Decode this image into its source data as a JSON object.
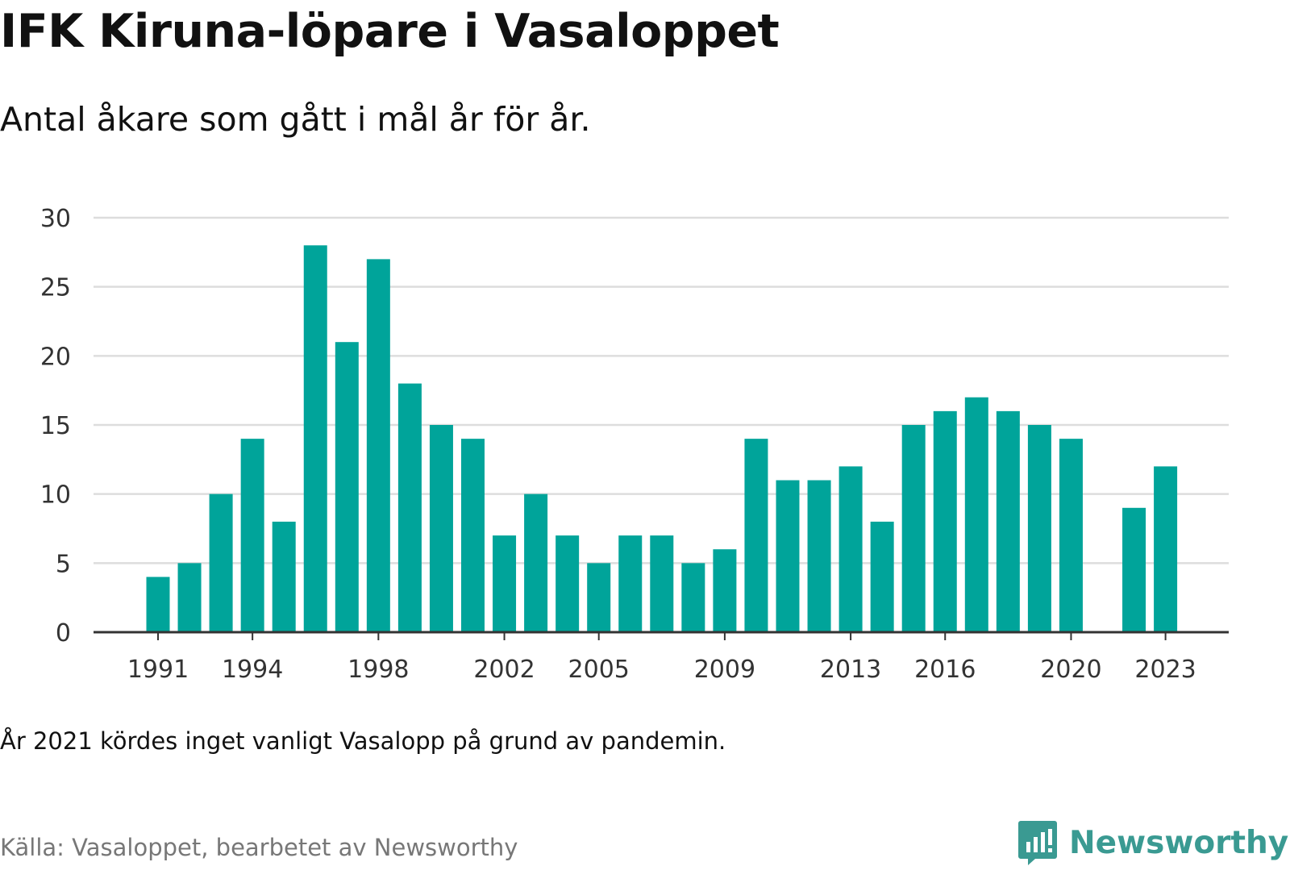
{
  "header": {
    "title": "IFK Kiruna-löpare i Vasaloppet",
    "subtitle": "Antal åkare som gått i mål år för år."
  },
  "footer": {
    "note": "År 2021 kördes inget vanligt Vasalopp på grund av pandemin.",
    "source": "Källa: Vasaloppet, bearbetet av Newsworthy",
    "brand_name": "Newsworthy",
    "brand_icon": "newsworthy-chart-logo-icon"
  },
  "colors": {
    "bar": "#00a49a",
    "grid": "#dddddd",
    "axis": "#333333",
    "brand": "#3a9a92"
  },
  "chart_data": {
    "type": "bar",
    "title": "IFK Kiruna-löpare i Vasaloppet",
    "subtitle": "Antal åkare som gått i mål år för år.",
    "xlabel": "",
    "ylabel": "",
    "ylim": [
      0,
      30
    ],
    "yticks": [
      0,
      5,
      10,
      15,
      20,
      25,
      30
    ],
    "xticks": [
      1991,
      1994,
      1998,
      2002,
      2005,
      2009,
      2013,
      2016,
      2020,
      2023
    ],
    "grid": "horizontal",
    "legend": "none",
    "x": [
      1991,
      1992,
      1993,
      1994,
      1995,
      1996,
      1997,
      1998,
      1999,
      2000,
      2001,
      2002,
      2003,
      2004,
      2005,
      2006,
      2007,
      2008,
      2009,
      2010,
      2011,
      2012,
      2013,
      2014,
      2015,
      2016,
      2017,
      2018,
      2019,
      2020,
      2021,
      2022,
      2023
    ],
    "values": [
      4,
      5,
      10,
      14,
      8,
      28,
      21,
      27,
      18,
      15,
      14,
      7,
      10,
      7,
      5,
      7,
      7,
      5,
      6,
      14,
      11,
      11,
      12,
      8,
      15,
      16,
      17,
      16,
      15,
      14,
      null,
      9,
      12
    ]
  }
}
